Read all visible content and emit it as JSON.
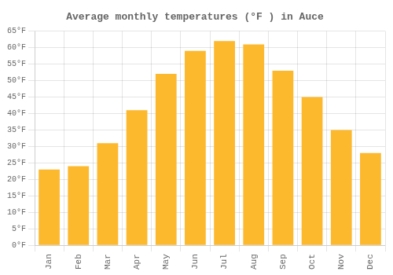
{
  "chart_data": {
    "type": "bar",
    "title": "Average monthly temperatures (°F ) in Auce",
    "categories": [
      "Jan",
      "Feb",
      "Mar",
      "Apr",
      "May",
      "Jun",
      "Jul",
      "Aug",
      "Sep",
      "Oct",
      "Nov",
      "Dec"
    ],
    "values": [
      23,
      24,
      31,
      41,
      52,
      59,
      62,
      61,
      53,
      45,
      35,
      28
    ],
    "color": "#FDB92E",
    "ylim": [
      0,
      65
    ],
    "yticks": [
      {
        "value": 0,
        "label": "0°F"
      },
      {
        "value": 5,
        "label": "5°F"
      },
      {
        "value": 10,
        "label": "10°F"
      },
      {
        "value": 15,
        "label": "15°F"
      },
      {
        "value": 20,
        "label": "20°F"
      },
      {
        "value": 25,
        "label": "25°F"
      },
      {
        "value": 30,
        "label": "30°F"
      },
      {
        "value": 35,
        "label": "35°F"
      },
      {
        "value": 40,
        "label": "40°F"
      },
      {
        "value": 45,
        "label": "45°F"
      },
      {
        "value": 50,
        "label": "50°F"
      },
      {
        "value": 55,
        "label": "55°F"
      },
      {
        "value": 60,
        "label": "60°F"
      },
      {
        "value": 65,
        "label": "65°F"
      }
    ],
    "grid": true
  }
}
